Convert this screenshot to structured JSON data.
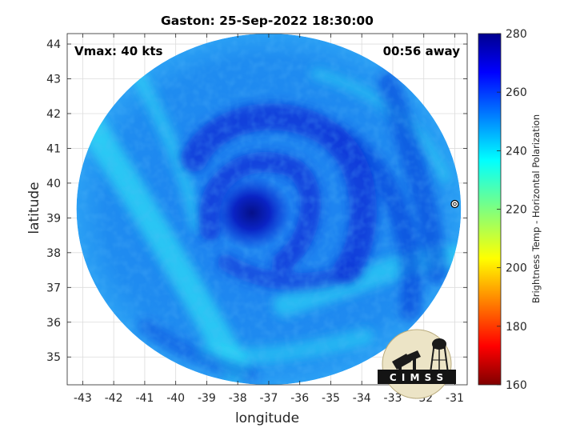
{
  "chart_data": {
    "type": "heatmap",
    "title": "Gaston: 25-Sep-2022 18:30:00",
    "xlabel": "longitude",
    "ylabel": "latitude",
    "xlim": [
      -43.5,
      -30.6
    ],
    "ylim": [
      34.2,
      44.3
    ],
    "x_ticks": [
      -43,
      -42,
      -41,
      -40,
      -39,
      -38,
      -37,
      -36,
      -35,
      -34,
      -33,
      -32,
      -31
    ],
    "y_ticks": [
      35,
      36,
      37,
      38,
      39,
      40,
      41,
      42,
      43,
      44
    ],
    "grid": true,
    "annotations": {
      "vmax": "Vmax: 40 kts",
      "time_offset": "00:56 away"
    },
    "logo_text": "C I M S S",
    "colorbar": {
      "label": "Brightness Temp - Horizontal Polarization",
      "range": [
        160,
        280
      ],
      "ticks": [
        160,
        180,
        200,
        220,
        240,
        260,
        280
      ],
      "colormap": "jet"
    },
    "storm_center": {
      "lon": -37.6,
      "lat": 39.1
    },
    "swath": {
      "center_lon": -37.0,
      "center_lat": 39.25,
      "radius_lon": 6.2,
      "radius_lat": 5.05
    },
    "marker": {
      "lon": -31.0,
      "lat": 39.4
    }
  },
  "colors": {
    "swath_base": "#1f8cf0",
    "swath_dark": "#0b2fd6",
    "swath_core": "#06108e",
    "swath_light": "#2ee0f5",
    "grid": "#dcdcdc"
  }
}
